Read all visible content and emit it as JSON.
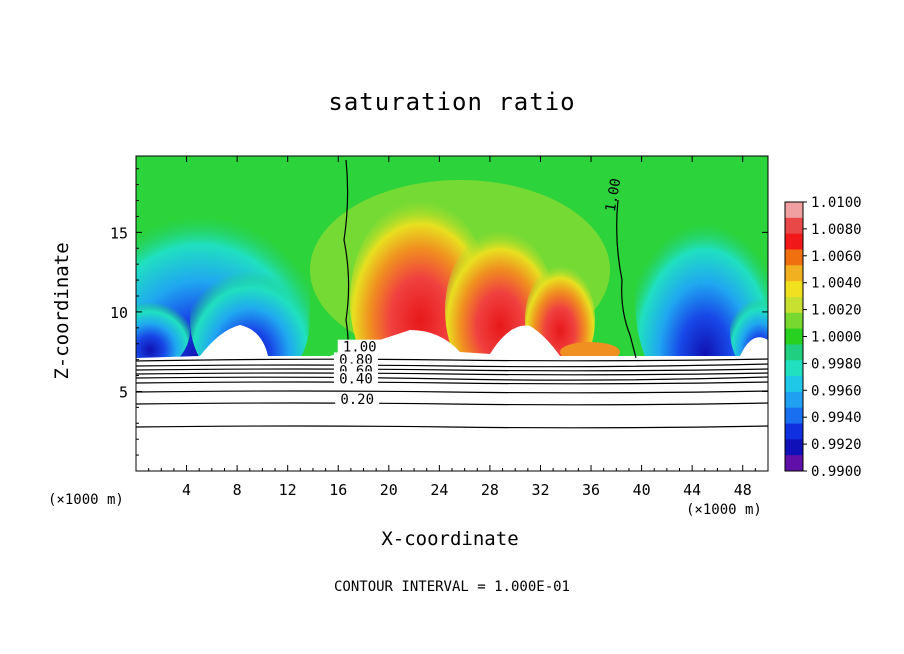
{
  "chart_data": {
    "type": "heatmap",
    "title": "saturation ratio",
    "xlabel": "X-coordinate",
    "ylabel": "Z-coordinate",
    "x_unit_label": "(×1000 m)",
    "xlim": [
      0,
      50
    ],
    "ylim": [
      0,
      19.8
    ],
    "x_ticks": [
      4,
      8,
      12,
      16,
      20,
      24,
      28,
      32,
      36,
      40,
      44,
      48
    ],
    "y_ticks": [
      5,
      10,
      15
    ],
    "footer": "CONTOUR INTERVAL = 1.000E-01",
    "colorbar": {
      "ticks": [
        "1.0100",
        "1.0080",
        "1.0060",
        "1.0040",
        "1.0020",
        "1.0000",
        "0.9980",
        "0.9960",
        "0.9940",
        "0.9920",
        "0.9900"
      ],
      "colors": [
        "#f0a0a0",
        "#e84848",
        "#f01818",
        "#f07010",
        "#f0b020",
        "#f0e020",
        "#c8e030",
        "#78d830",
        "#28d020",
        "#20d080",
        "#20e0c0",
        "#20c8e8",
        "#20a0f0",
        "#1870f0",
        "#1030e0",
        "#1010b8",
        "#6010a8"
      ]
    },
    "contour_labels": [
      {
        "text": "1.00",
        "x": 17.7,
        "z": 7.5
      },
      {
        "text": "1.00",
        "x": 38.1,
        "z": 17.3
      },
      {
        "text": "0.80",
        "x": 17.4,
        "z": 6.7
      },
      {
        "text": "0.60",
        "x": 17.4,
        "z": 6.0
      },
      {
        "text": "0.40",
        "x": 17.4,
        "z": 5.5
      },
      {
        "text": "0.20",
        "x": 17.5,
        "z": 4.2
      }
    ]
  }
}
